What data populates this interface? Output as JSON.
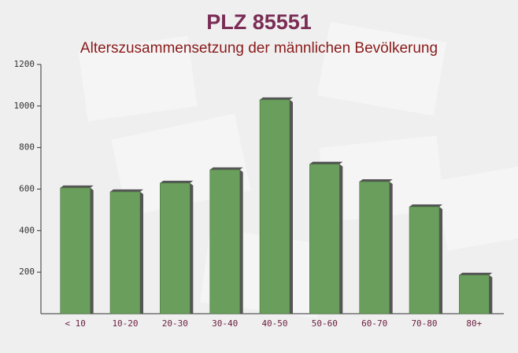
{
  "chart_data": {
    "type": "bar",
    "title": "PLZ 85551",
    "subtitle": "Alterszusammensetzung der männlichen Bevölkerung",
    "categories": [
      "< 10",
      "10-20",
      "20-30",
      "30-40",
      "40-50",
      "50-60",
      "60-70",
      "70-80",
      "80+"
    ],
    "values": [
      606,
      587,
      629,
      693,
      1030,
      720,
      636,
      515,
      186
    ],
    "color": "#6a9e5c",
    "ylim": [
      0,
      1200
    ],
    "yticks": [
      200,
      400,
      600,
      800,
      1000,
      1200
    ],
    "grid": false
  }
}
